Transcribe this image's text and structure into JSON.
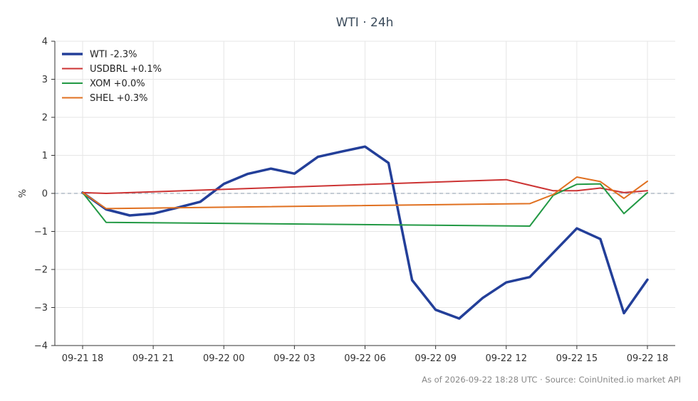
{
  "chart_data": {
    "type": "line",
    "title": "WTI · 24h",
    "ylabel": "%",
    "xlabel": "",
    "ylim": [
      -4,
      4
    ],
    "yticks": [
      4,
      3,
      2,
      1,
      0,
      -1,
      -2,
      -3,
      -4
    ],
    "ytick_labels": [
      "4",
      "3",
      "2",
      "1",
      "0",
      "−1",
      "−2",
      "−3",
      "−4"
    ],
    "xlim": [
      0,
      24
    ],
    "xticks": [
      0,
      3,
      6,
      9,
      12,
      15,
      18,
      21,
      24
    ],
    "xtick_labels": [
      "09-21 18",
      "09-21 21",
      "09-22 00",
      "09-22 03",
      "09-22 06",
      "09-22 09",
      "09-22 12",
      "09-22 15",
      "09-22 18"
    ],
    "grid": true,
    "legend_position": "top-left",
    "zero_line": true,
    "series": [
      {
        "name": "WTI -2.3%",
        "color": "#233f99",
        "width": 3.5,
        "points": [
          [
            0,
            0.02
          ],
          [
            1,
            -0.42
          ],
          [
            2,
            -0.58
          ],
          [
            3,
            -0.53
          ],
          [
            4,
            -0.38
          ],
          [
            5,
            -0.22
          ],
          [
            6,
            0.25
          ],
          [
            7,
            0.51
          ],
          [
            8,
            0.65
          ],
          [
            9,
            0.52
          ],
          [
            10,
            0.96
          ],
          [
            11,
            1.1
          ],
          [
            12,
            1.23
          ],
          [
            13,
            0.8
          ],
          [
            14,
            -2.28
          ],
          [
            15,
            -3.06
          ],
          [
            16,
            -3.29
          ],
          [
            17,
            -2.75
          ],
          [
            18,
            -2.34
          ],
          [
            19,
            -2.2
          ],
          [
            21,
            -0.92
          ],
          [
            22,
            -1.2
          ],
          [
            23,
            -3.15
          ],
          [
            24,
            -2.27
          ]
        ]
      },
      {
        "name": "USDBRL +0.1%",
        "color": "#cc3333",
        "width": 2,
        "points": [
          [
            0,
            0.02
          ],
          [
            1,
            0.0
          ],
          [
            18,
            0.36
          ],
          [
            20,
            0.07
          ],
          [
            21,
            0.07
          ],
          [
            22,
            0.14
          ],
          [
            23,
            0.02
          ],
          [
            24,
            0.07
          ]
        ]
      },
      {
        "name": "XOM +0.0%",
        "color": "#229944",
        "width": 2,
        "points": [
          [
            0,
            0.02
          ],
          [
            1,
            -0.76
          ],
          [
            19,
            -0.86
          ],
          [
            20,
            -0.05
          ],
          [
            21,
            0.24
          ],
          [
            22,
            0.25
          ],
          [
            23,
            -0.53
          ],
          [
            24,
            0.02
          ]
        ]
      },
      {
        "name": "SHEL +0.3%",
        "color": "#e07020",
        "width": 2,
        "points": [
          [
            0,
            0.02
          ],
          [
            1,
            -0.4
          ],
          [
            19,
            -0.27
          ],
          [
            20,
            -0.03
          ],
          [
            21,
            0.43
          ],
          [
            22,
            0.31
          ],
          [
            23,
            -0.13
          ],
          [
            24,
            0.32
          ]
        ]
      }
    ]
  },
  "footer": "As of 2026-09-22 18:28 UTC · Source: CoinUnited.io market API"
}
